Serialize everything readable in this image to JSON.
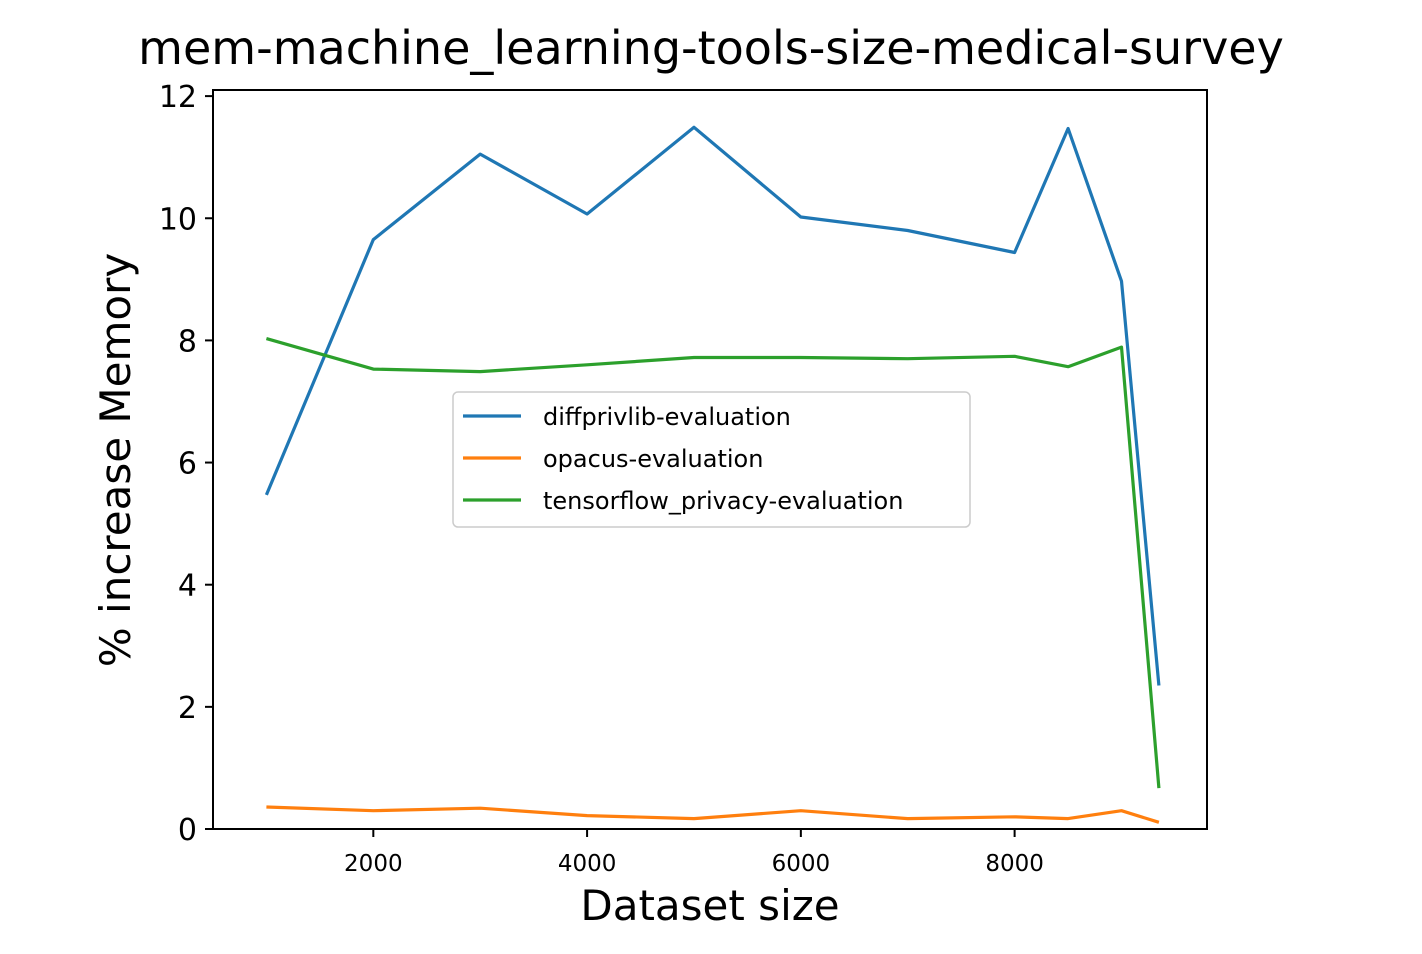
{
  "chart_data": {
    "type": "line",
    "title": "mem-machine_learning-tools-size-medical-survey",
    "xlabel": "Dataset size",
    "ylabel": "% increase Memory",
    "xlim": [
      500,
      9800
    ],
    "ylim": [
      0,
      12.1
    ],
    "xticks": [
      2000,
      4000,
      6000,
      8000
    ],
    "yticks": [
      0,
      2,
      4,
      6,
      8,
      10,
      12
    ],
    "legend_position": "center",
    "series": [
      {
        "name": "diffprivlib-evaluation",
        "color": "#1f77b4",
        "x": [
          1000,
          2000,
          3000,
          4000,
          5000,
          6000,
          7000,
          8000,
          8500,
          9000,
          9350
        ],
        "y": [
          5.47,
          9.65,
          11.05,
          10.07,
          11.49,
          10.02,
          9.8,
          9.44,
          11.47,
          8.97,
          2.35
        ]
      },
      {
        "name": "opacus-evaluation",
        "color": "#ff7f0e",
        "x": [
          1000,
          2000,
          3000,
          4000,
          5000,
          6000,
          7000,
          8000,
          8500,
          9000,
          9350
        ],
        "y": [
          0.36,
          0.3,
          0.34,
          0.22,
          0.17,
          0.3,
          0.17,
          0.2,
          0.17,
          0.3,
          0.11
        ]
      },
      {
        "name": "tensorflow_privacy-evaluation",
        "color": "#2ca02c",
        "x": [
          1000,
          2000,
          3000,
          4000,
          5000,
          6000,
          7000,
          8000,
          8500,
          9000,
          9350
        ],
        "y": [
          8.03,
          7.53,
          7.49,
          7.6,
          7.72,
          7.72,
          7.7,
          7.74,
          7.57,
          7.89,
          0.67
        ]
      }
    ]
  }
}
